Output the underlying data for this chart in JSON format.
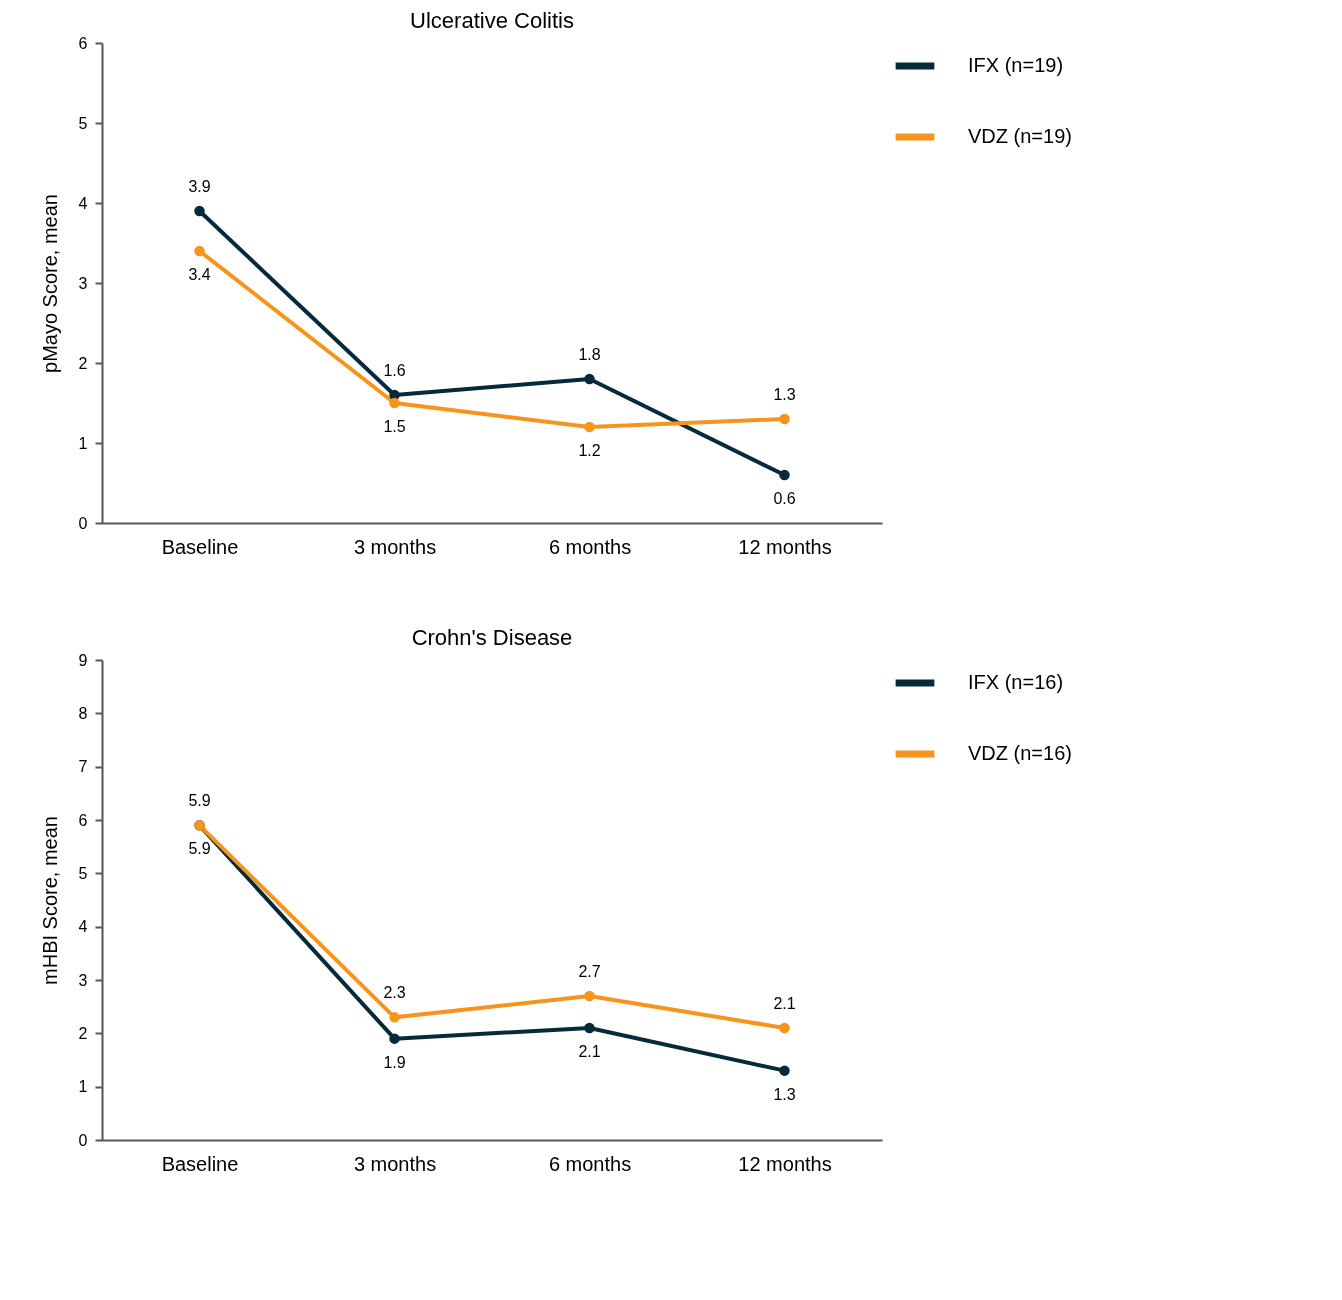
{
  "chart_data": [
    {
      "type": "line",
      "title": "Ulcerative Colitis",
      "ylabel": "pMayo Score, mean",
      "categories": [
        "Baseline",
        "3 months",
        "6 months",
        "12 months"
      ],
      "series": [
        {
          "name": "IFX (n=19)",
          "color": "#062a3a",
          "values": [
            3.9,
            1.6,
            1.8,
            0.6
          ]
        },
        {
          "name": "VDZ (n=19)",
          "color": "#f7941d",
          "values": [
            3.4,
            1.5,
            1.2,
            1.3
          ]
        }
      ],
      "ylim": [
        0,
        6
      ],
      "yticks": [
        0,
        1,
        2,
        3,
        4,
        5,
        6
      ],
      "grid": false,
      "legend": "top right",
      "marker": "circle",
      "line_style": "solid",
      "data_labels": true
    },
    {
      "type": "line",
      "title": "Crohn's Disease",
      "ylabel": "mHBI Score, mean",
      "categories": [
        "Baseline",
        "3 months",
        "6 months",
        "12 months"
      ],
      "series": [
        {
          "name": "IFX (n=16)",
          "color": "#062a3a",
          "values": [
            5.9,
            1.9,
            2.1,
            1.3
          ]
        },
        {
          "name": "VDZ (n=16)",
          "color": "#f7941d",
          "values": [
            5.9,
            2.3,
            2.7,
            2.1
          ]
        }
      ],
      "ylim": [
        0,
        9
      ],
      "yticks": [
        0,
        1,
        2,
        3,
        4,
        5,
        6,
        7,
        8,
        9
      ],
      "grid": false,
      "legend": "top right",
      "marker": "circle",
      "line_style": "solid",
      "data_labels": true
    }
  ]
}
